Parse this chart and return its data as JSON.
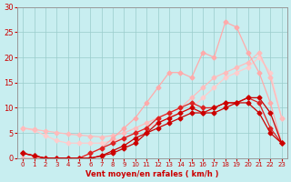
{
  "x": [
    0,
    1,
    2,
    3,
    4,
    5,
    6,
    7,
    8,
    9,
    10,
    11,
    12,
    13,
    14,
    15,
    16,
    17,
    18,
    19,
    20,
    21,
    22,
    23
  ],
  "line_jagged_pink": [
    0,
    0,
    0,
    0,
    0,
    0,
    1,
    2,
    4,
    6,
    8,
    11,
    14,
    17,
    17,
    16,
    21,
    20,
    27,
    26,
    21,
    17,
    11,
    3
  ],
  "line_straight1": [
    6,
    5.7,
    5.4,
    5.1,
    4.8,
    4.6,
    4.4,
    4.2,
    4.5,
    5,
    6,
    7,
    8,
    9,
    10,
    12,
    14,
    16,
    17,
    18,
    19,
    21,
    16,
    8
  ],
  "line_straight2": [
    6,
    5.5,
    4.5,
    3.5,
    3,
    3,
    3,
    3,
    3.5,
    4,
    5,
    6,
    7,
    8,
    9,
    10,
    12,
    14,
    16,
    17,
    18,
    20,
    17,
    8
  ],
  "line_dark1": [
    1,
    0.5,
    0,
    0,
    0,
    0,
    0,
    0.5,
    1,
    2,
    3,
    5,
    6,
    7,
    8,
    9,
    9,
    9,
    10,
    11,
    12,
    12,
    9,
    3
  ],
  "line_dark2": [
    1,
    0.5,
    0,
    0,
    0,
    0,
    0,
    0.5,
    1.5,
    2.5,
    4,
    5,
    7,
    8,
    9,
    10,
    9,
    10,
    11,
    11,
    11,
    9,
    5,
    3
  ],
  "line_dark3": [
    1,
    0.5,
    0,
    0,
    0,
    0,
    1,
    2,
    3,
    4,
    5,
    6,
    8,
    9,
    10,
    11,
    10,
    10,
    11,
    11,
    12,
    11,
    6,
    3
  ],
  "bg_color": "#c8eef0",
  "grid_color": "#99cccc",
  "color_jagged": "#ffaaaa",
  "color_straight1": "#ffbbbb",
  "color_straight2": "#ffcccc",
  "color_dark1": "#cc0000",
  "color_dark2": "#cc0000",
  "color_dark3": "#dd2222",
  "xlabel": "Vent moyen/en rafales ( km/h )",
  "ylim": [
    0,
    30
  ],
  "xlim": [
    -0.5,
    23.5
  ],
  "yticks": [
    0,
    5,
    10,
    15,
    20,
    25,
    30
  ],
  "xticks": [
    0,
    1,
    2,
    3,
    4,
    5,
    6,
    7,
    8,
    9,
    10,
    11,
    12,
    13,
    14,
    15,
    16,
    17,
    18,
    19,
    20,
    21,
    22,
    23
  ]
}
